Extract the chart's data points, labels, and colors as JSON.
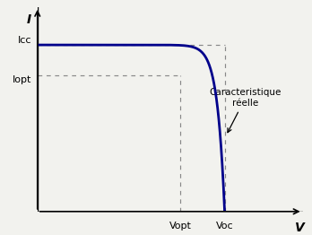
{
  "xlabel": "V",
  "ylabel": "I",
  "icc": 0.88,
  "iopt": 0.72,
  "vopt": 0.55,
  "voc": 0.72,
  "curve_color": "#00008B",
  "curve_linewidth": 2.0,
  "dashed_color": "#888888",
  "annotation_text": "Caracteristique\nréelle",
  "background_color": "#f2f2ee",
  "xlim": [
    0,
    1.02
  ],
  "ylim": [
    0,
    1.08
  ],
  "alpha_curve": 0.028
}
